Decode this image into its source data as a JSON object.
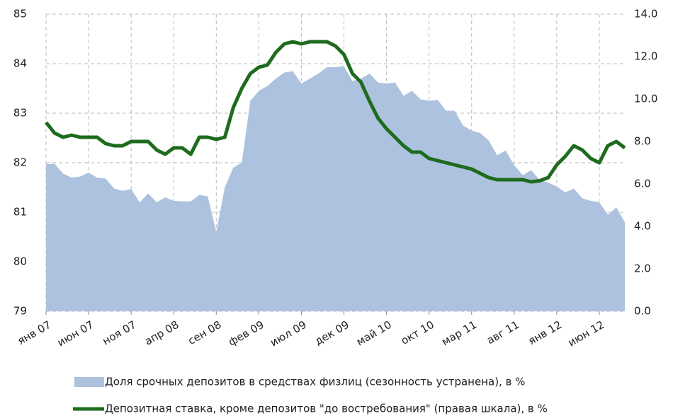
{
  "chart_data": {
    "type": "area-line",
    "categories": [
      "янв 07",
      null,
      null,
      null,
      null,
      "июн 07",
      null,
      null,
      null,
      null,
      "ноя 07",
      null,
      null,
      null,
      null,
      "апр 08",
      null,
      null,
      null,
      null,
      "сен 08",
      null,
      null,
      null,
      null,
      "фев 09",
      null,
      null,
      null,
      null,
      "июл 09",
      null,
      null,
      null,
      null,
      "дек 09",
      null,
      null,
      null,
      null,
      "май 10",
      null,
      null,
      null,
      null,
      "окт 10",
      null,
      null,
      null,
      null,
      "мар 11",
      null,
      null,
      null,
      null,
      "авг 11",
      null,
      null,
      null,
      null,
      "янв 12",
      null,
      null,
      null,
      null,
      "июн 12",
      null,
      null,
      null
    ],
    "series": [
      {
        "name": "Доля срочных депозитов в средствах физлиц (сезонность устранена), в %",
        "color": "#adc2de",
        "kind": "area",
        "values": [
          81.97,
          81.98,
          81.78,
          81.7,
          81.72,
          81.8,
          81.7,
          81.68,
          81.48,
          81.43,
          81.47,
          81.2,
          81.38,
          81.2,
          81.3,
          81.23,
          81.22,
          81.22,
          81.35,
          81.32,
          80.6,
          81.5,
          81.9,
          82.0,
          83.25,
          83.45,
          83.55,
          83.7,
          83.82,
          83.85,
          83.6,
          83.7,
          83.8,
          83.93,
          83.93,
          83.95,
          83.65,
          83.7,
          83.8,
          83.62,
          83.6,
          83.62,
          83.35,
          83.45,
          83.28,
          83.25,
          83.27,
          83.05,
          83.05,
          82.75,
          82.65,
          82.6,
          82.45,
          82.15,
          82.25,
          81.95,
          81.75,
          81.85,
          81.65,
          81.6,
          81.52,
          81.4,
          81.48,
          81.28,
          81.23,
          81.2,
          80.95,
          81.1,
          80.8
        ]
      },
      {
        "name": "Депозитная ставка, кроме депозитов \"до востребования\" (правая шкала), в %",
        "color": "#1e6b1e",
        "kind": "line",
        "axis": "y2",
        "values": [
          8.9,
          8.4,
          8.2,
          8.3,
          8.2,
          8.2,
          8.2,
          7.9,
          7.8,
          7.8,
          8.0,
          8.0,
          8.0,
          7.6,
          7.4,
          7.7,
          7.7,
          7.4,
          8.2,
          8.2,
          8.1,
          8.2,
          9.6,
          10.5,
          11.2,
          11.5,
          11.6,
          12.2,
          12.6,
          12.7,
          12.6,
          12.7,
          12.7,
          12.7,
          12.5,
          12.1,
          11.2,
          10.8,
          9.9,
          9.1,
          8.6,
          8.2,
          7.8,
          7.5,
          7.5,
          7.2,
          7.1,
          7.0,
          6.9,
          6.8,
          6.7,
          6.5,
          6.3,
          6.2,
          6.2,
          6.2,
          6.2,
          6.1,
          6.15,
          6.3,
          6.9,
          7.3,
          7.8,
          7.6,
          7.2,
          7.0,
          7.8,
          8.0,
          7.7
        ]
      }
    ],
    "ylim": [
      79,
      85
    ],
    "yticks": [
      79,
      80,
      81,
      82,
      83,
      84,
      85
    ],
    "y2lim": [
      0,
      14
    ],
    "y2ticks": [
      {
        "value": 0,
        "label": "0.0"
      },
      {
        "value": 2,
        "label": "2.0"
      },
      {
        "value": 4,
        "label": "4.0"
      },
      {
        "value": 6,
        "label": "6.0"
      },
      {
        "value": 8,
        "label": "8.0"
      },
      {
        "value": 10,
        "label": "10.0"
      },
      {
        "value": 12,
        "label": "12.0"
      },
      {
        "value": 14,
        "label": "14.0"
      }
    ],
    "grid": true,
    "legend": "bottom"
  }
}
